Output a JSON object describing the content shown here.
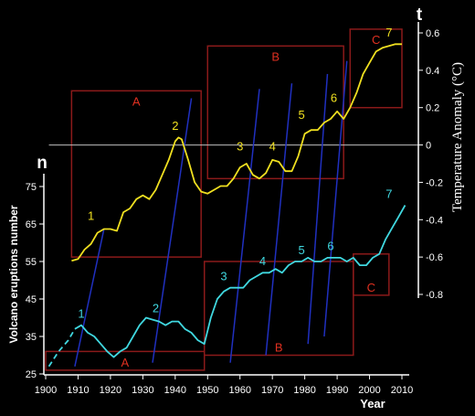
{
  "chart_data": {
    "type": "line",
    "x_axis": {
      "label": "Year",
      "ticks": [
        1900,
        1910,
        1920,
        1930,
        1940,
        1950,
        1960,
        1970,
        1980,
        1990,
        2000,
        2010
      ],
      "range": [
        1900,
        2012
      ]
    },
    "left_axis": {
      "symbol": "n",
      "label": "Volcano eruptions number",
      "ticks": [
        25,
        35,
        45,
        55,
        65,
        75
      ],
      "range": [
        25,
        80
      ]
    },
    "right_axis": {
      "symbol": "t",
      "label": "Temperature Anomaly (°C)",
      "ticks": [
        0.6,
        0.4,
        0.2,
        0,
        -0.2,
        -0.4,
        -0.6,
        -0.8
      ],
      "range": [
        -0.85,
        0.62
      ]
    },
    "series": [
      {
        "axis": "right",
        "color": "#f0e020",
        "points": [
          [
            1908,
            -0.62
          ],
          [
            1910,
            -0.61
          ],
          [
            1912,
            -0.56
          ],
          [
            1914,
            -0.53
          ],
          [
            1916,
            -0.47
          ],
          [
            1918,
            -0.45
          ],
          [
            1920,
            -0.45
          ],
          [
            1922,
            -0.46
          ],
          [
            1924,
            -0.36
          ],
          [
            1926,
            -0.34
          ],
          [
            1928,
            -0.29
          ],
          [
            1930,
            -0.27
          ],
          [
            1932,
            -0.29
          ],
          [
            1934,
            -0.24
          ],
          [
            1936,
            -0.16
          ],
          [
            1938,
            -0.08
          ],
          [
            1940,
            0.02
          ],
          [
            1941,
            0.04
          ],
          [
            1942,
            0.03
          ],
          [
            1944,
            -0.08
          ],
          [
            1946,
            -0.2
          ],
          [
            1948,
            -0.25
          ],
          [
            1950,
            -0.26
          ],
          [
            1952,
            -0.24
          ],
          [
            1954,
            -0.22
          ],
          [
            1956,
            -0.22
          ],
          [
            1958,
            -0.18
          ],
          [
            1960,
            -0.12
          ],
          [
            1962,
            -0.1
          ],
          [
            1964,
            -0.16
          ],
          [
            1966,
            -0.18
          ],
          [
            1968,
            -0.15
          ],
          [
            1970,
            -0.08
          ],
          [
            1972,
            -0.09
          ],
          [
            1974,
            -0.14
          ],
          [
            1976,
            -0.14
          ],
          [
            1978,
            -0.06
          ],
          [
            1980,
            0.06
          ],
          [
            1982,
            0.08
          ],
          [
            1984,
            0.08
          ],
          [
            1986,
            0.12
          ],
          [
            1988,
            0.14
          ],
          [
            1990,
            0.18
          ],
          [
            1992,
            0.14
          ],
          [
            1994,
            0.2
          ],
          [
            1996,
            0.28
          ],
          [
            1998,
            0.38
          ],
          [
            2000,
            0.44
          ],
          [
            2002,
            0.5
          ],
          [
            2004,
            0.52
          ],
          [
            2006,
            0.53
          ],
          [
            2008,
            0.54
          ],
          [
            2010,
            0.54
          ]
        ]
      },
      {
        "axis": "left",
        "color": "#40d8e0",
        "points": [
          [
            1909,
            37
          ],
          [
            1911,
            38
          ],
          [
            1913,
            36
          ],
          [
            1915,
            35
          ],
          [
            1917,
            33
          ],
          [
            1919,
            31
          ],
          [
            1921,
            29.5
          ],
          [
            1923,
            31
          ],
          [
            1925,
            32
          ],
          [
            1927,
            35
          ],
          [
            1929,
            38
          ],
          [
            1931,
            40
          ],
          [
            1933,
            39.5
          ],
          [
            1935,
            39
          ],
          [
            1937,
            38
          ],
          [
            1939,
            39
          ],
          [
            1941,
            39
          ],
          [
            1943,
            37
          ],
          [
            1945,
            36
          ],
          [
            1947,
            34
          ],
          [
            1949,
            33
          ],
          [
            1951,
            40
          ],
          [
            1953,
            45
          ],
          [
            1955,
            47
          ],
          [
            1957,
            48
          ],
          [
            1959,
            48
          ],
          [
            1961,
            48
          ],
          [
            1963,
            50
          ],
          [
            1965,
            51
          ],
          [
            1967,
            52
          ],
          [
            1969,
            52
          ],
          [
            1971,
            53
          ],
          [
            1973,
            52
          ],
          [
            1975,
            54
          ],
          [
            1977,
            55
          ],
          [
            1979,
            55
          ],
          [
            1981,
            56
          ],
          [
            1983,
            55
          ],
          [
            1985,
            55
          ],
          [
            1987,
            56
          ],
          [
            1989,
            56
          ],
          [
            1991,
            56
          ],
          [
            1993,
            55
          ],
          [
            1995,
            56
          ],
          [
            1997,
            54
          ],
          [
            1999,
            54
          ],
          [
            2001,
            56
          ],
          [
            2003,
            57
          ],
          [
            2005,
            61
          ],
          [
            2007,
            64
          ],
          [
            2009,
            67
          ],
          [
            2011,
            70
          ]
        ]
      },
      {
        "axis": "left",
        "color": "#40d8e0",
        "style": "dashed",
        "points": [
          [
            1901,
            27
          ],
          [
            1904,
            31
          ],
          [
            1907,
            34
          ],
          [
            1909,
            37
          ]
        ]
      }
    ],
    "point_labels": {
      "temperature": [
        {
          "text": "1",
          "x": 1914,
          "y": -0.4
        },
        {
          "text": "2",
          "x": 1940,
          "y": 0.08
        },
        {
          "text": "3",
          "x": 1960,
          "y": -0.03
        },
        {
          "text": "4",
          "x": 1970,
          "y": -0.03
        },
        {
          "text": "5",
          "x": 1979,
          "y": 0.14
        },
        {
          "text": "6",
          "x": 1989,
          "y": 0.23
        },
        {
          "text": "7",
          "x": 2006,
          "y": 0.58
        }
      ],
      "eruptions": [
        {
          "text": "1",
          "x": 1911,
          "y": 40
        },
        {
          "text": "2",
          "x": 1934,
          "y": 41.5
        },
        {
          "text": "3",
          "x": 1955,
          "y": 50
        },
        {
          "text": "4",
          "x": 1967,
          "y": 54
        },
        {
          "text": "5",
          "x": 1979,
          "y": 57
        },
        {
          "text": "6",
          "x": 1988,
          "y": 58
        },
        {
          "text": "7",
          "x": 2006,
          "y": 72
        }
      ]
    },
    "periods": [
      {
        "label": "A",
        "axis": "right",
        "x": [
          1908,
          1948
        ],
        "y": [
          -0.6,
          0.29
        ],
        "label_pos": "top"
      },
      {
        "label": "B",
        "axis": "right",
        "x": [
          1950,
          1992
        ],
        "y": [
          -0.18,
          0.53
        ],
        "label_pos": "top"
      },
      {
        "label": "C",
        "axis": "right",
        "x": [
          1994,
          2010
        ],
        "y": [
          0.2,
          0.62
        ],
        "label_pos": "top"
      },
      {
        "label": "A",
        "axis": "left",
        "x": [
          1900,
          1949
        ],
        "y": [
          26,
          31
        ],
        "label_pos": "bottom"
      },
      {
        "label": "B",
        "axis": "left",
        "x": [
          1949,
          1995
        ],
        "y": [
          30,
          55
        ],
        "label_pos": "bottom"
      },
      {
        "label": "C",
        "axis": "left",
        "x": [
          1995,
          2006
        ],
        "y": [
          46,
          57
        ],
        "label_pos": "bottom"
      }
    ],
    "diagonal_lines": [
      [
        [
          1909,
          27
        ],
        [
          1918,
          -0.45
        ]
      ],
      [
        [
          1933,
          28
        ],
        [
          1945,
          0.25
        ]
      ],
      [
        [
          1957,
          28
        ],
        [
          1966,
          0.3
        ]
      ],
      [
        [
          1968,
          30
        ],
        [
          1976,
          0.33
        ]
      ],
      [
        [
          1981,
          33
        ],
        [
          1987,
          0.38
        ]
      ],
      [
        [
          1986,
          35
        ],
        [
          1993,
          0.45
        ]
      ]
    ],
    "colors": {
      "background": "#000000",
      "frame": "#8b1a1a",
      "frame_label": "#e03020",
      "diagonal": "#2030c0",
      "zero_line": "#c0c0c0",
      "axis": "#ffffff",
      "text": "#ffffff"
    }
  }
}
